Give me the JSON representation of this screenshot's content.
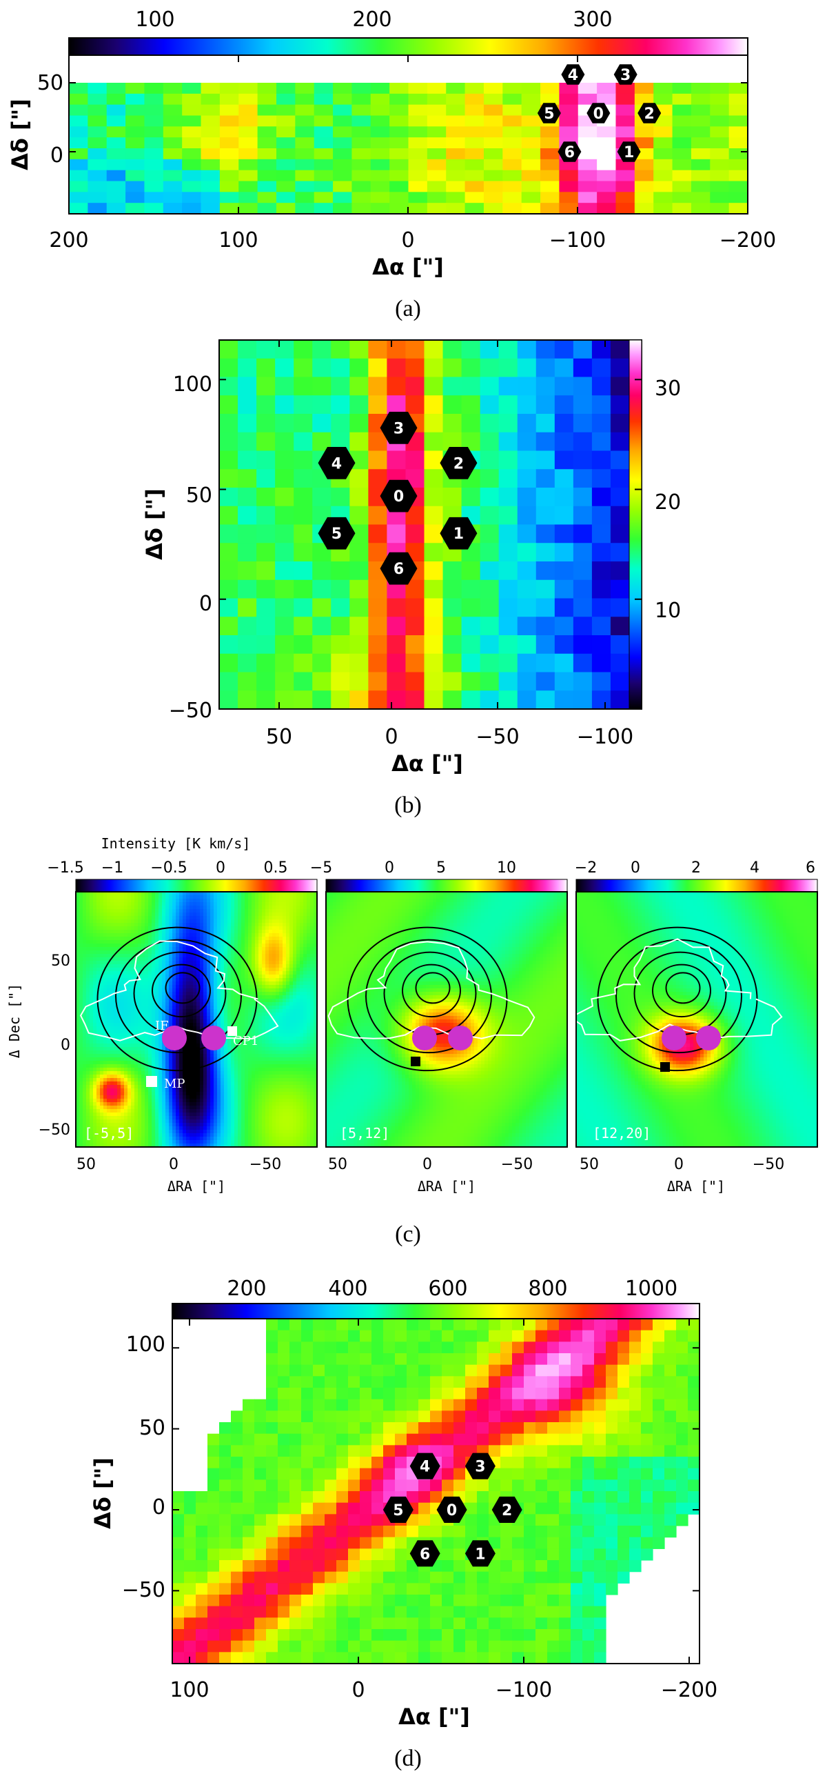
{
  "colorscale": [
    "#000000",
    "#1a0070",
    "#0000ff",
    "#0066ff",
    "#00ccff",
    "#00ffcc",
    "#33ff33",
    "#99ff00",
    "#ffff00",
    "#ffaa00",
    "#ff3300",
    "#ff0066",
    "#ff33cc",
    "#ff99ff",
    "#ffffff"
  ],
  "chart_data": [
    {
      "id": "a",
      "type": "heatmap",
      "caption": "(a)",
      "xlabel": "Δα [\"]",
      "ylabel": "Δδ [\"]",
      "xlim": [
        200,
        -200
      ],
      "ylim": [
        -45,
        70
      ],
      "data_ylim": [
        -45,
        50
      ],
      "xticks": [
        "200",
        "100",
        "0",
        "−100",
        "−200"
      ],
      "yticks": [
        "0",
        "50"
      ],
      "colorbar": {
        "ticks": [
          "100",
          "200",
          "300"
        ],
        "range": [
          0,
          320
        ]
      },
      "markers": [
        {
          "id": "0",
          "x": -112,
          "y": 28
        },
        {
          "id": "1",
          "x": -130,
          "y": 0
        },
        {
          "id": "2",
          "x": -142,
          "y": 28
        },
        {
          "id": "3",
          "x": -128,
          "y": 56
        },
        {
          "id": "4",
          "x": -97,
          "y": 56
        },
        {
          "id": "5",
          "x": -83,
          "y": 28
        },
        {
          "id": "6",
          "x": -95,
          "y": 0
        }
      ]
    },
    {
      "id": "b",
      "type": "heatmap",
      "caption": "(b)",
      "xlabel": "Δα [\"]",
      "ylabel": "Δδ [\"]",
      "xlim": [
        75,
        -110
      ],
      "ylim": [
        -50,
        118
      ],
      "xticks": [
        "50",
        "0",
        "−50",
        "−100"
      ],
      "yticks": [
        "−50",
        "0",
        "50",
        "100"
      ],
      "colorbar": {
        "ticks": [
          "10",
          "20",
          "30"
        ],
        "range": [
          2,
          35
        ],
        "orientation": "vertical"
      },
      "markers": [
        {
          "id": "0",
          "x": -6,
          "y": 47
        },
        {
          "id": "1",
          "x": -33,
          "y": 30
        },
        {
          "id": "2",
          "x": -33,
          "y": 62
        },
        {
          "id": "3",
          "x": -6,
          "y": 78
        },
        {
          "id": "4",
          "x": 22,
          "y": 62
        },
        {
          "id": "5",
          "x": 22,
          "y": 30
        },
        {
          "id": "6",
          "x": -6,
          "y": 14
        }
      ]
    },
    {
      "id": "c",
      "type": "heatmap",
      "caption": "(c)",
      "colorbar_title": "Intensity [K km/s]",
      "panels": [
        {
          "label": "[-5,5]",
          "xlabel": "ΔRA [\"]",
          "ylabel": "Δ Dec [\"]",
          "xticks": [
            "50",
            "0",
            "−50"
          ],
          "yticks": [
            "−50",
            "0",
            "50"
          ],
          "colorbar_ticks": [
            "−1.5",
            "−1",
            "−0.5",
            "0",
            "0.5"
          ],
          "sources": [
            "IF",
            "CP1",
            "MP"
          ]
        },
        {
          "label": "[5,12]",
          "xlabel": "ΔRA [\"]",
          "xticks": [
            "50",
            "0",
            "−50"
          ],
          "colorbar_ticks": [
            "−5",
            "0",
            "5",
            "10"
          ]
        },
        {
          "label": "[12,20]",
          "xlabel": "ΔRA [\"]",
          "xticks": [
            "50",
            "0",
            "−50"
          ],
          "colorbar_ticks": [
            "−2",
            "0",
            "2",
            "4",
            "6"
          ]
        }
      ]
    },
    {
      "id": "d",
      "type": "heatmap",
      "caption": "(d)",
      "xlabel": "Δα [\"]",
      "ylabel": "Δδ [\"]",
      "xlim": [
        110,
        -205
      ],
      "ylim": [
        -95,
        118
      ],
      "xticks": [
        "100",
        "0",
        "−100",
        "−200"
      ],
      "yticks": [
        "−50",
        "0",
        "50",
        "100"
      ],
      "colorbar": {
        "ticks": [
          "200",
          "400",
          "600",
          "800",
          "1000"
        ],
        "range": [
          0,
          1070
        ]
      },
      "markers": [
        {
          "id": "0",
          "x": -57,
          "y": 0
        },
        {
          "id": "1",
          "x": -74,
          "y": -27
        },
        {
          "id": "2",
          "x": -90,
          "y": 0
        },
        {
          "id": "3",
          "x": -74,
          "y": 27
        },
        {
          "id": "4",
          "x": -41,
          "y": 27
        },
        {
          "id": "5",
          "x": -25,
          "y": 0
        },
        {
          "id": "6",
          "x": -41,
          "y": -27
        }
      ]
    }
  ]
}
